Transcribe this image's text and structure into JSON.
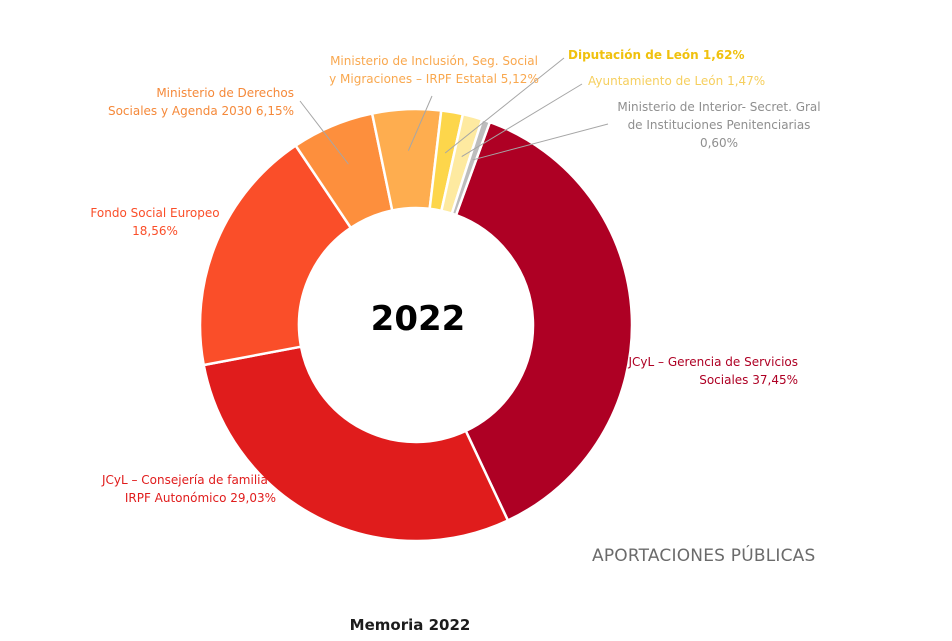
{
  "chart_data": {
    "type": "pie",
    "variant": "donut",
    "center_label": "2022",
    "title": "APORTACIONES PÚBLICAS",
    "slices": [
      {
        "key": "gerencia",
        "label_lines": [
          "JCyL – Gerencia de Servicios",
          "Sociales 37,45%"
        ],
        "value": 37.45,
        "color": "#AE0024",
        "label_color": "#AE0024"
      },
      {
        "key": "consejeria",
        "label_lines": [
          "JCyL – Consejería de familia -",
          "IRPF Autonómico 29,03%"
        ],
        "value": 29.03,
        "color": "#E01C1C",
        "label_color": "#E01C1C"
      },
      {
        "key": "fse",
        "label_lines": [
          "Fondo Social Europeo",
          "18,56%"
        ],
        "value": 18.56,
        "color": "#FA4E29",
        "label_color": "#FA4E29"
      },
      {
        "key": "derechos",
        "label_lines": [
          "Ministerio de Derechos",
          "Sociales y Agenda 2030 6,15%"
        ],
        "value": 6.15,
        "color": "#FD8F3D",
        "label_color": "#F5893A"
      },
      {
        "key": "inclusion",
        "label_lines": [
          "Ministerio de Inclusión, Seg. Social",
          "y Migraciones – IRPF Estatal 5,12%"
        ],
        "value": 5.12,
        "color": "#FEAD4F",
        "label_color": "#F9A84F"
      },
      {
        "key": "diputacion",
        "label_lines": [
          "Diputación de León 1,62%"
        ],
        "value": 1.62,
        "color": "#FDD64B",
        "label_color": "#F0C10E"
      },
      {
        "key": "ayuntamiento",
        "label_lines": [
          "Ayuntamiento de León 1,47%"
        ],
        "value": 1.47,
        "color": "#FEEAA0",
        "label_color": "#F6CF5E"
      },
      {
        "key": "interior",
        "label_lines": [
          "Ministerio de Interior- Secret. Gral",
          "de Instituciones Penitenciarias",
          "0,60%"
        ],
        "value": 0.6,
        "color": "#BDBDBD",
        "label_color": "#8F8F8F"
      }
    ]
  },
  "caption": "Memoria 2022"
}
